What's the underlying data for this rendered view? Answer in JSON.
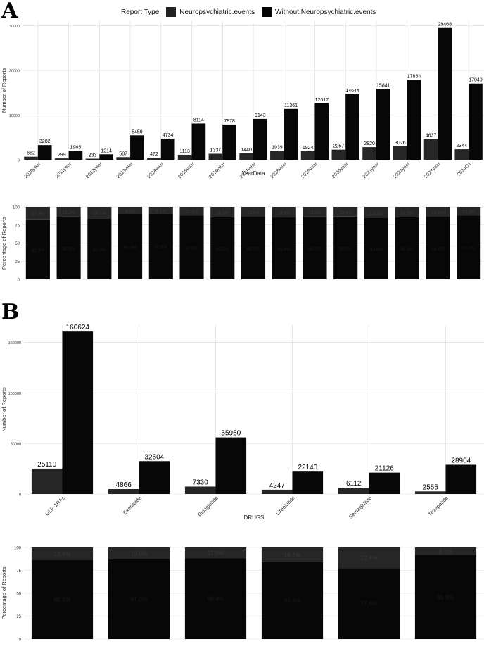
{
  "panels": {
    "a": "A",
    "b": "B"
  },
  "legend": {
    "title": "Report Type",
    "entries": [
      {
        "label": "Neuropsychiatric.events",
        "color": "#222222"
      },
      {
        "label": "Without.Neuropsychiatric.events",
        "color": "#050505"
      }
    ]
  },
  "colors": {
    "neuro": "#262626",
    "without": "#070707",
    "grid": "#d9d9d9",
    "pct_text": "#3a3a3a"
  },
  "chart_data": [
    {
      "id": "yearCounts",
      "type": "bar",
      "xlabel": "YearData",
      "ylabel": "Number of Reports",
      "ylim": [
        0,
        31000
      ],
      "yticks": [
        0,
        10000,
        20000,
        30000
      ],
      "categories": [
        "2010year",
        "2011year",
        "2012year",
        "2013year",
        "2014year",
        "2015year",
        "2016year",
        "2017year",
        "2018year",
        "2019year",
        "2020year",
        "2021year",
        "2022year",
        "2023year",
        "2024Q1"
      ],
      "series": [
        {
          "name": "Neuropsychiatric.events",
          "values": [
            682,
            299,
            233,
            587,
            472,
            1113,
            1337,
            1440,
            1939,
            1924,
            2257,
            2820,
            3026,
            4637,
            2344
          ]
        },
        {
          "name": "Without.Neuropsychiatric.events",
          "values": [
            3282,
            1965,
            1214,
            5459,
            4734,
            8114,
            7878,
            9143,
            11361,
            12617,
            14644,
            15841,
            17864,
            29468,
            17040
          ]
        }
      ]
    },
    {
      "id": "yearPct",
      "type": "bar",
      "stacked": true,
      "ylabel": "Percentage of Reports",
      "ylim": [
        0,
        100
      ],
      "yticks": [
        0,
        25,
        50,
        75,
        100
      ],
      "categories": [
        "2010year",
        "2011year",
        "2012year",
        "2013year",
        "2014year",
        "2015year",
        "2016year",
        "2017year",
        "2018year",
        "2019year",
        "2020year",
        "2021year",
        "2022year",
        "2023year",
        "2024Q1"
      ],
      "series": [
        {
          "name": "Neuropsychiatric.events",
          "values": [
            17.2,
            13.2,
            16.1,
            9.7,
            9.1,
            12.1,
            14.5,
            13.6,
            14.6,
            13.2,
            13.4,
            15.1,
            14.5,
            13.6,
            12.1
          ]
        },
        {
          "name": "Without.Neuropsychiatric.events",
          "values": [
            82.8,
            86.8,
            83.9,
            90.3,
            90.9,
            87.9,
            85.5,
            86.4,
            85.4,
            86.8,
            86.6,
            84.9,
            85.5,
            86.4,
            87.9
          ]
        }
      ],
      "labels_top": [
        "17.2%",
        "13.2%",
        "16.1%",
        "9.7%",
        "9.1%",
        "12.1%",
        "14.5%",
        "13.6%",
        "14.6%",
        "13.2%",
        "13.4%",
        "15.1%",
        "14.5%",
        "13.6%",
        "12.1%"
      ],
      "labels_bottom": [
        "82.8%",
        "86.8%",
        "83.9%",
        "90.3%",
        "90.9%",
        "87.9%",
        "85.5%",
        "86.4%",
        "85.4%",
        "86.8%",
        "86.6%",
        "84.9%",
        "85.5%",
        "86.4%",
        "87.9%"
      ]
    },
    {
      "id": "drugCounts",
      "type": "bar",
      "xlabel": "DRUGS",
      "ylabel": "Number of Reports",
      "ylim": [
        0,
        167000
      ],
      "yticks": [
        0,
        50000,
        100000,
        150000
      ],
      "categories": [
        "GLP-1RAs",
        "Exenatide",
        "Dulaglutide",
        "Liraglutide",
        "Semaglutide",
        "Tirzepatide"
      ],
      "series": [
        {
          "name": "Neuropsychiatric.events",
          "values": [
            25110,
            4866,
            7330,
            4247,
            6112,
            2555
          ]
        },
        {
          "name": "Without.Neuropsychiatric.events",
          "values": [
            160624,
            32504,
            55950,
            22140,
            21126,
            28904
          ]
        }
      ]
    },
    {
      "id": "drugPct",
      "type": "bar",
      "stacked": true,
      "ylabel": "Percentage of Reports",
      "ylim": [
        0,
        100
      ],
      "yticks": [
        0,
        25,
        50,
        75,
        100
      ],
      "categories": [
        "GLP-1RAs",
        "Exenatide",
        "Dulaglutide",
        "Liraglutide",
        "Semaglutide",
        "Tirzepatide"
      ],
      "series": [
        {
          "name": "Neuropsychiatric.events",
          "values": [
            13.5,
            13.0,
            11.6,
            16.1,
            22.4,
            8.1
          ]
        },
        {
          "name": "Without.Neuropsychiatric.events",
          "values": [
            86.5,
            87.0,
            88.4,
            83.9,
            77.6,
            91.9
          ]
        }
      ],
      "labels_top": [
        "13.5%",
        "13.0%",
        "11.6%",
        "16.1%",
        "22.4%",
        "8.1%"
      ],
      "labels_bottom": [
        "86.5%",
        "87.0%",
        "88.4%",
        "83.9%",
        "77.6%",
        "91.9%"
      ]
    }
  ]
}
